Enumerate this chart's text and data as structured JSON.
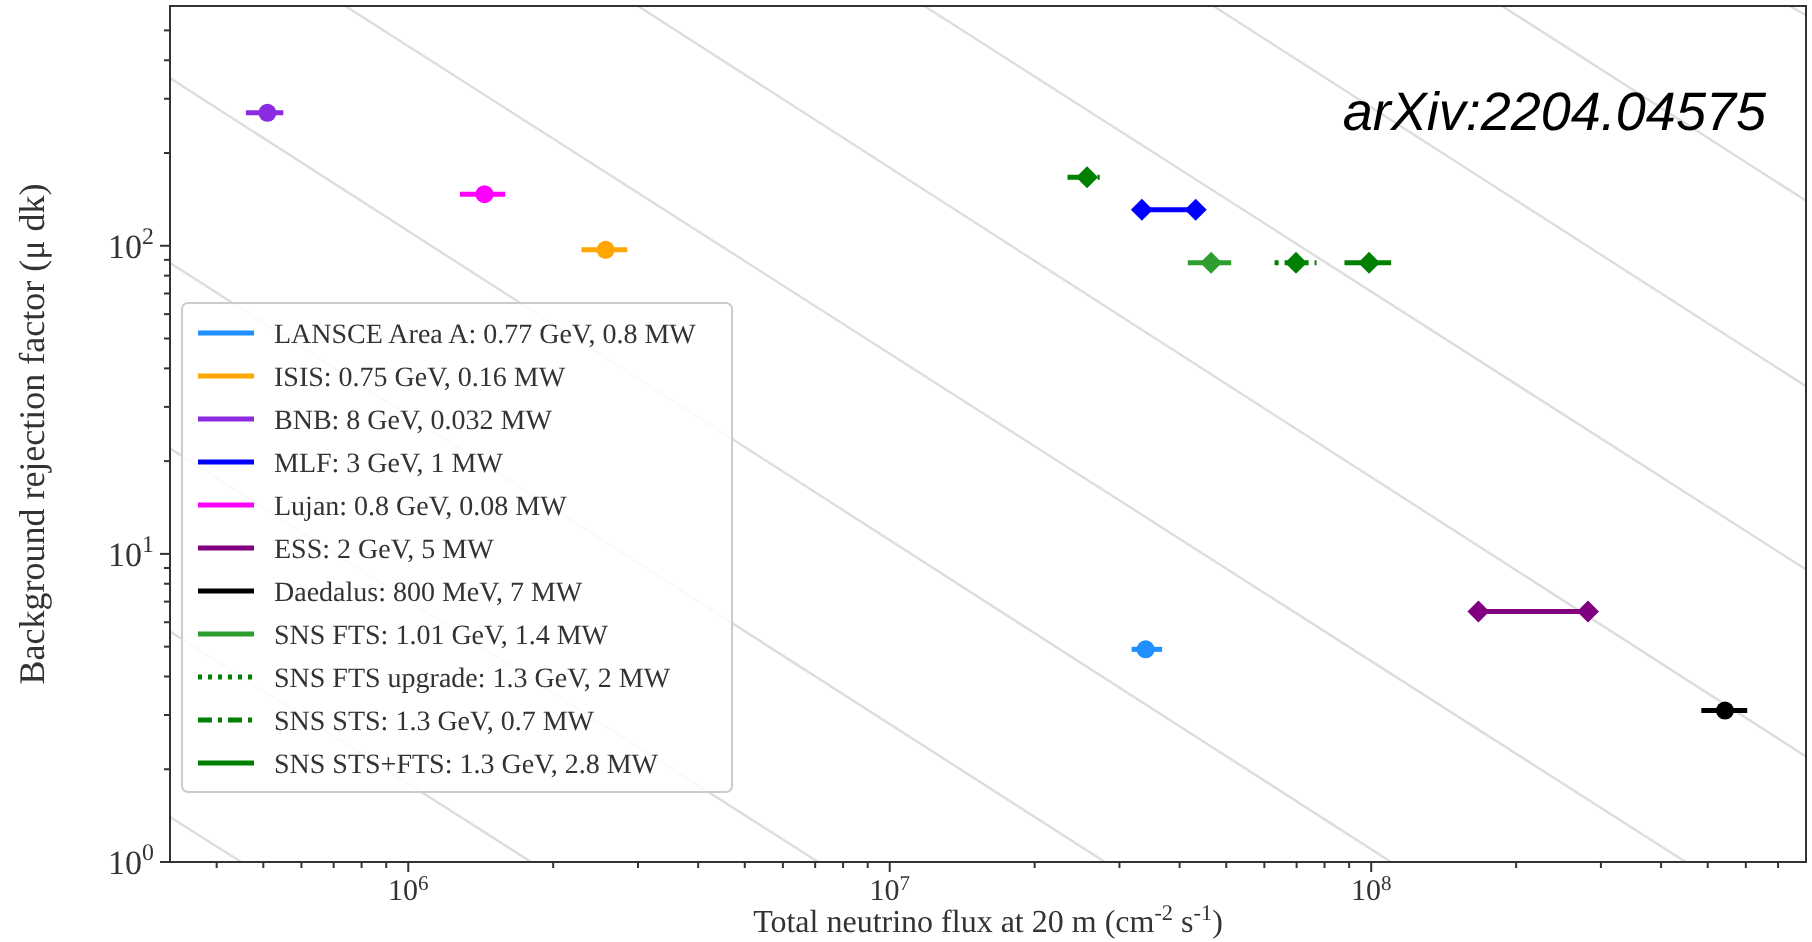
{
  "chart_data": {
    "type": "scatter",
    "xlabel": "Total neutrino flux at 20 m (cm$^{-2}$ s$^{-1}$)",
    "ylabel": "Background rejection factor (μ dk)",
    "log": "xy",
    "xlim": [
      320000,
      800000000
    ],
    "ylim": [
      1,
      600
    ],
    "xticks": [
      {
        "value": 400000,
        "label": null
      },
      {
        "value": 500000,
        "label": null
      },
      {
        "value": 600000,
        "label": null
      },
      {
        "value": 700000,
        "label": null
      },
      {
        "value": 800000,
        "label": null
      },
      {
        "value": 900000,
        "label": null
      },
      {
        "value": 1000000,
        "label": "10$^{6}$"
      },
      {
        "value": 2000000,
        "label": null
      },
      {
        "value": 3000000,
        "label": null
      },
      {
        "value": 4000000,
        "label": null
      },
      {
        "value": 5000000,
        "label": null
      },
      {
        "value": 6000000,
        "label": null
      },
      {
        "value": 7000000,
        "label": null
      },
      {
        "value": 8000000,
        "label": null
      },
      {
        "value": 9000000,
        "label": null
      },
      {
        "value": 10000000,
        "label": "10$^{7}$"
      },
      {
        "value": 20000000,
        "label": null
      },
      {
        "value": 30000000,
        "label": null
      },
      {
        "value": 40000000,
        "label": null
      },
      {
        "value": 50000000,
        "label": null
      },
      {
        "value": 60000000,
        "label": null
      },
      {
        "value": 70000000,
        "label": null
      },
      {
        "value": 80000000,
        "label": null
      },
      {
        "value": 90000000,
        "label": null
      },
      {
        "value": 100000000,
        "label": "10$^{8}$"
      },
      {
        "value": 200000000,
        "label": null
      },
      {
        "value": 300000000,
        "label": null
      },
      {
        "value": 400000000,
        "label": null
      },
      {
        "value": 500000000,
        "label": null
      },
      {
        "value": 600000000,
        "label": null
      },
      {
        "value": 700000000,
        "label": null
      }
    ],
    "yticks": [
      {
        "value": 1,
        "label": "10$^{0}$"
      },
      {
        "value": 2,
        "label": null
      },
      {
        "value": 3,
        "label": null
      },
      {
        "value": 4,
        "label": null
      },
      {
        "value": 5,
        "label": null
      },
      {
        "value": 6,
        "label": null
      },
      {
        "value": 7,
        "label": null
      },
      {
        "value": 8,
        "label": null
      },
      {
        "value": 9,
        "label": null
      },
      {
        "value": 10,
        "label": "10$^{1}$"
      },
      {
        "value": 20,
        "label": null
      },
      {
        "value": 30,
        "label": null
      },
      {
        "value": 40,
        "label": null
      },
      {
        "value": 50,
        "label": null
      },
      {
        "value": 60,
        "label": null
      },
      {
        "value": 70,
        "label": null
      },
      {
        "value": 80,
        "label": null
      },
      {
        "value": 90,
        "label": null
      },
      {
        "value": 100,
        "label": "10$^{2}$"
      },
      {
        "value": 200,
        "label": null
      },
      {
        "value": 300,
        "label": null
      },
      {
        "value": 400,
        "label": null
      },
      {
        "value": 500,
        "label": null
      }
    ],
    "grid": false,
    "legend": "bottom left",
    "annotations": [
      "arXiv:2204.04575"
    ],
    "series": [
      {
        "type": "line",
        "color": "#dddddd",
        "marker": "none",
        "x": [
          320000,
          450000
        ],
        "values": [
          1.4,
          1
        ]
      },
      {
        "type": "line",
        "color": "#dddddd",
        "marker": "none",
        "x": [
          320000,
          1800000
        ],
        "values": [
          5.6,
          1
        ]
      },
      {
        "type": "line",
        "color": "#dddddd",
        "marker": "none",
        "x": [
          320000,
          7100000
        ],
        "values": [
          22,
          1
        ]
      },
      {
        "type": "line",
        "color": "#dddddd",
        "marker": "none",
        "x": [
          320000,
          28000000
        ],
        "values": [
          88,
          1
        ]
      },
      {
        "type": "line",
        "color": "#dddddd",
        "marker": "none",
        "x": [
          320000,
          110000000
        ],
        "values": [
          350,
          1
        ]
      },
      {
        "type": "line",
        "color": "#dddddd",
        "marker": "none",
        "x": [
          740000,
          450000000
        ],
        "values": [
          600,
          1
        ]
      },
      {
        "type": "line",
        "color": "#dddddd",
        "marker": "none",
        "x": [
          3000000,
          800000000
        ],
        "values": [
          600,
          2.2
        ]
      },
      {
        "type": "line",
        "color": "#dddddd",
        "marker": "none",
        "x": [
          11800000,
          800000000
        ],
        "values": [
          600,
          8.9
        ]
      },
      {
        "type": "line",
        "color": "#dddddd",
        "marker": "none",
        "x": [
          47000000,
          800000000
        ],
        "values": [
          600,
          35
        ]
      },
      {
        "type": "line",
        "color": "#dddddd",
        "marker": "none",
        "x": [
          187000000,
          800000000
        ],
        "values": [
          600,
          140
        ]
      },
      {
        "type": "line",
        "color": "#dddddd",
        "marker": "none",
        "x": [
          740000000,
          800000000
        ],
        "values": [
          600,
          560
        ]
      },
      {
        "name": "LANSCE Area A: 0.77 GeV, 0.8 MW",
        "color": "#1e90ff",
        "marker": "circle",
        "line_style": "solid",
        "x": [
          34000000
        ],
        "values": [
          4.9
        ],
        "xerrors": [
          [
            31800000,
            36800000
          ]
        ]
      },
      {
        "name": "ISIS: 0.75 GeV, 0.16 MW",
        "color": "#ffa500",
        "marker": "circle",
        "line_style": "solid",
        "x": [
          2570000
        ],
        "values": [
          97
        ],
        "xerrors": [
          [
            2290000,
            2850000
          ]
        ]
      },
      {
        "name": "BNB: 8 GeV, 0.032 MW",
        "color": "#8a2be2",
        "marker": "circle",
        "line_style": "solid",
        "x": [
          510000
        ],
        "values": [
          270
        ],
        "xerrors": [
          [
            460000,
            550000
          ]
        ]
      },
      {
        "name": "MLF: 3 GeV, 1 MW",
        "type": "line",
        "color": "#0000ff",
        "marker": "diamond",
        "line_style": "solid",
        "x": [
          33400000,
          43200000
        ],
        "values": [
          131,
          131
        ]
      },
      {
        "name": "Lujan: 0.8 GeV, 0.08 MW",
        "color": "#ff00ff",
        "marker": "circle",
        "line_style": "solid",
        "x": [
          1440000
        ],
        "values": [
          147
        ],
        "xerrors": [
          [
            1280000,
            1590000
          ]
        ]
      },
      {
        "name": "ESS: 2 GeV, 5 MW",
        "type": "line",
        "color": "#800080",
        "marker": "diamond",
        "line_style": "solid",
        "x": [
          167000000,
          282000000
        ],
        "values": [
          6.5,
          6.5
        ]
      },
      {
        "name": "Daedalus: 800 MeV, 7 MW",
        "color": "#000000",
        "marker": "circle",
        "line_style": "solid",
        "x": [
          543000000
        ],
        "values": [
          3.1
        ],
        "xerrors": [
          [
            485000000,
            604000000
          ]
        ]
      },
      {
        "name": "SNS FTS: 1.01 GeV, 1.4 MW",
        "color": "#2e9e2e",
        "marker": "diamond",
        "line_style": "solid",
        "x": [
          46500000
        ],
        "values": [
          88
        ],
        "xerrors": [
          [
            41600000,
            51200000
          ]
        ]
      },
      {
        "name": "SNS FTS upgrade: 1.3 GeV, 2 MW",
        "color": "#008000",
        "marker": "diamond",
        "line_style": "dotted",
        "x": [
          69800000
        ],
        "values": [
          88
        ],
        "xerrors": [
          [
            63000000,
            77000000
          ]
        ]
      },
      {
        "name": "SNS STS: 1.3 GeV, 0.7 MW",
        "color": "#008000",
        "marker": "diamond",
        "line_style": "dashed",
        "x": [
          25700000
        ],
        "values": [
          167
        ],
        "xerrors": [
          [
            23400000,
            27300000
          ]
        ]
      },
      {
        "name": "SNS STS+FTS: 1.3 GeV, 2.8 MW",
        "color": "#008000",
        "marker": "diamond",
        "line_style": "solid",
        "x": [
          99000000
        ],
        "values": [
          88
        ],
        "xerrors": [
          [
            88000000,
            110000000
          ]
        ]
      }
    ]
  }
}
